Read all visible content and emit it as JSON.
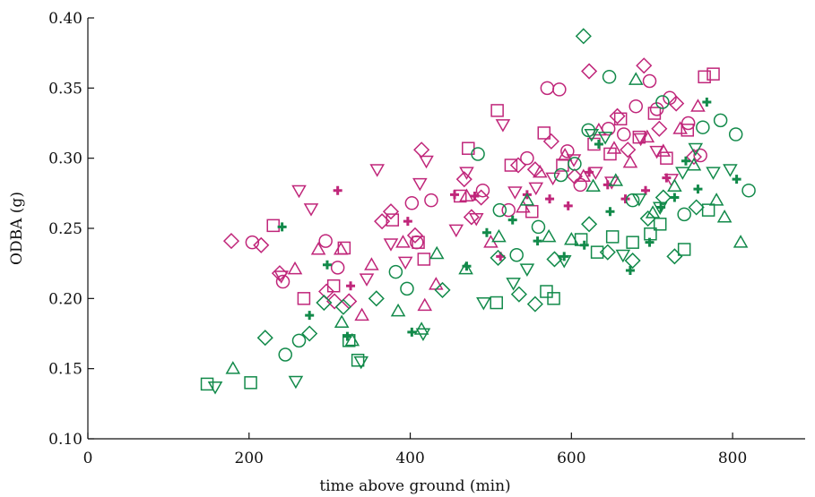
{
  "chart_data": {
    "type": "scatter",
    "title": "",
    "xlabel": "time above ground (min)",
    "ylabel": "ODBA (g)",
    "xlim": [
      0,
      890
    ],
    "ylim": [
      0.1,
      0.4
    ],
    "xticks": [
      "0",
      "200",
      "400",
      "600",
      "800"
    ],
    "xtick_values": [
      0,
      200,
      400,
      600,
      800
    ],
    "yticks": [
      "0.10",
      "0.15",
      "0.20",
      "0.25",
      "0.30",
      "0.35",
      "0.40"
    ],
    "ytick_values": [
      0.1,
      0.15,
      0.2,
      0.25,
      0.3,
      0.35,
      0.4
    ],
    "grid": false,
    "legend": "none",
    "colors": {
      "magenta": "#c0267a",
      "green": "#128a4a"
    },
    "series": [
      {
        "color": "#c0267a",
        "marker": "diamond",
        "points": [
          [
            178,
            0.241
          ],
          [
            215,
            0.238
          ],
          [
            238,
            0.218
          ],
          [
            296,
            0.205
          ],
          [
            306,
            0.198
          ],
          [
            324,
            0.198
          ],
          [
            365,
            0.255
          ],
          [
            376,
            0.262
          ],
          [
            406,
            0.245
          ],
          [
            414,
            0.306
          ],
          [
            467,
            0.285
          ],
          [
            476,
            0.258
          ],
          [
            488,
            0.272
          ],
          [
            534,
            0.295
          ],
          [
            555,
            0.292
          ],
          [
            575,
            0.312
          ],
          [
            604,
            0.287
          ],
          [
            622,
            0.362
          ],
          [
            657,
            0.33
          ],
          [
            670,
            0.306
          ],
          [
            690,
            0.366
          ],
          [
            709,
            0.321
          ],
          [
            730,
            0.339
          ],
          [
            752,
            0.301
          ]
        ]
      },
      {
        "color": "#c0267a",
        "marker": "circle",
        "points": [
          [
            204,
            0.24
          ],
          [
            242,
            0.212
          ],
          [
            295,
            0.241
          ],
          [
            310,
            0.222
          ],
          [
            402,
            0.268
          ],
          [
            408,
            0.24
          ],
          [
            426,
            0.27
          ],
          [
            490,
            0.277
          ],
          [
            522,
            0.263
          ],
          [
            545,
            0.3
          ],
          [
            570,
            0.35
          ],
          [
            585,
            0.349
          ],
          [
            595,
            0.305
          ],
          [
            611,
            0.281
          ],
          [
            646,
            0.321
          ],
          [
            665,
            0.317
          ],
          [
            680,
            0.337
          ],
          [
            697,
            0.355
          ],
          [
            706,
            0.335
          ],
          [
            722,
            0.343
          ],
          [
            745,
            0.325
          ],
          [
            760,
            0.302
          ]
        ]
      },
      {
        "color": "#c0267a",
        "marker": "square",
        "points": [
          [
            230,
            0.252
          ],
          [
            268,
            0.2
          ],
          [
            305,
            0.209
          ],
          [
            318,
            0.236
          ],
          [
            378,
            0.256
          ],
          [
            410,
            0.24
          ],
          [
            417,
            0.228
          ],
          [
            462,
            0.273
          ],
          [
            472,
            0.307
          ],
          [
            508,
            0.334
          ],
          [
            525,
            0.295
          ],
          [
            551,
            0.262
          ],
          [
            566,
            0.318
          ],
          [
            589,
            0.295
          ],
          [
            628,
            0.31
          ],
          [
            648,
            0.303
          ],
          [
            661,
            0.328
          ],
          [
            684,
            0.315
          ],
          [
            703,
            0.332
          ],
          [
            718,
            0.3
          ],
          [
            744,
            0.32
          ],
          [
            765,
            0.358
          ],
          [
            776,
            0.36
          ]
        ]
      },
      {
        "color": "#c0267a",
        "marker": "triangle-up",
        "points": [
          [
            257,
            0.221
          ],
          [
            286,
            0.235
          ],
          [
            314,
            0.235
          ],
          [
            340,
            0.188
          ],
          [
            352,
            0.224
          ],
          [
            391,
            0.24
          ],
          [
            418,
            0.195
          ],
          [
            432,
            0.21
          ],
          [
            470,
            0.273
          ],
          [
            500,
            0.24
          ],
          [
            540,
            0.265
          ],
          [
            561,
            0.29
          ],
          [
            592,
            0.302
          ],
          [
            615,
            0.287
          ],
          [
            634,
            0.32
          ],
          [
            653,
            0.307
          ],
          [
            673,
            0.297
          ],
          [
            694,
            0.315
          ],
          [
            714,
            0.305
          ],
          [
            735,
            0.321
          ],
          [
            757,
            0.337
          ]
        ]
      },
      {
        "color": "#c0267a",
        "marker": "triangle-down",
        "points": [
          [
            240,
            0.216
          ],
          [
            262,
            0.277
          ],
          [
            277,
            0.264
          ],
          [
            346,
            0.214
          ],
          [
            359,
            0.292
          ],
          [
            376,
            0.239
          ],
          [
            394,
            0.226
          ],
          [
            412,
            0.282
          ],
          [
            420,
            0.298
          ],
          [
            457,
            0.249
          ],
          [
            470,
            0.29
          ],
          [
            482,
            0.257
          ],
          [
            515,
            0.324
          ],
          [
            530,
            0.276
          ],
          [
            556,
            0.279
          ],
          [
            577,
            0.286
          ],
          [
            603,
            0.299
          ],
          [
            630,
            0.29
          ],
          [
            650,
            0.283
          ],
          [
            686,
            0.314
          ],
          [
            706,
            0.305
          ],
          [
            724,
            0.285
          ]
        ]
      },
      {
        "color": "#c0267a",
        "marker": "plus",
        "points": [
          [
            310,
            0.277
          ],
          [
            326,
            0.209
          ],
          [
            397,
            0.255
          ],
          [
            455,
            0.274
          ],
          [
            480,
            0.273
          ],
          [
            512,
            0.23
          ],
          [
            545,
            0.274
          ],
          [
            573,
            0.271
          ],
          [
            596,
            0.266
          ],
          [
            622,
            0.29
          ],
          [
            645,
            0.281
          ],
          [
            667,
            0.271
          ],
          [
            692,
            0.277
          ],
          [
            718,
            0.286
          ]
        ]
      },
      {
        "color": "#128a4a",
        "marker": "diamond",
        "points": [
          [
            220,
            0.172
          ],
          [
            275,
            0.175
          ],
          [
            293,
            0.197
          ],
          [
            317,
            0.194
          ],
          [
            358,
            0.2
          ],
          [
            440,
            0.206
          ],
          [
            509,
            0.229
          ],
          [
            535,
            0.203
          ],
          [
            555,
            0.196
          ],
          [
            579,
            0.228
          ],
          [
            615,
            0.387
          ],
          [
            622,
            0.253
          ],
          [
            645,
            0.233
          ],
          [
            676,
            0.227
          ],
          [
            695,
            0.257
          ],
          [
            714,
            0.272
          ],
          [
            728,
            0.23
          ],
          [
            755,
            0.265
          ]
        ]
      },
      {
        "color": "#128a4a",
        "marker": "circle",
        "points": [
          [
            245,
            0.16
          ],
          [
            262,
            0.17
          ],
          [
            382,
            0.219
          ],
          [
            396,
            0.207
          ],
          [
            484,
            0.303
          ],
          [
            511,
            0.263
          ],
          [
            532,
            0.231
          ],
          [
            559,
            0.251
          ],
          [
            587,
            0.288
          ],
          [
            604,
            0.296
          ],
          [
            621,
            0.32
          ],
          [
            647,
            0.358
          ],
          [
            676,
            0.27
          ],
          [
            713,
            0.34
          ],
          [
            740,
            0.26
          ],
          [
            763,
            0.322
          ],
          [
            785,
            0.327
          ],
          [
            804,
            0.317
          ],
          [
            820,
            0.277
          ]
        ]
      },
      {
        "color": "#128a4a",
        "marker": "square",
        "points": [
          [
            148,
            0.139
          ],
          [
            202,
            0.14
          ],
          [
            324,
            0.17
          ],
          [
            335,
            0.156
          ],
          [
            507,
            0.197
          ],
          [
            569,
            0.205
          ],
          [
            578,
            0.2
          ],
          [
            612,
            0.242
          ],
          [
            632,
            0.233
          ],
          [
            651,
            0.244
          ],
          [
            676,
            0.24
          ],
          [
            698,
            0.246
          ],
          [
            710,
            0.253
          ],
          [
            740,
            0.235
          ],
          [
            770,
            0.263
          ]
        ]
      },
      {
        "color": "#128a4a",
        "marker": "triangle-up",
        "points": [
          [
            180,
            0.15
          ],
          [
            315,
            0.183
          ],
          [
            328,
            0.17
          ],
          [
            385,
            0.191
          ],
          [
            414,
            0.178
          ],
          [
            433,
            0.232
          ],
          [
            469,
            0.221
          ],
          [
            510,
            0.244
          ],
          [
            545,
            0.27
          ],
          [
            572,
            0.244
          ],
          [
            600,
            0.242
          ],
          [
            627,
            0.28
          ],
          [
            655,
            0.284
          ],
          [
            680,
            0.356
          ],
          [
            701,
            0.261
          ],
          [
            728,
            0.28
          ],
          [
            752,
            0.295
          ],
          [
            780,
            0.27
          ],
          [
            790,
            0.258
          ],
          [
            810,
            0.24
          ]
        ]
      },
      {
        "color": "#128a4a",
        "marker": "triangle-down",
        "points": [
          [
            158,
            0.137
          ],
          [
            258,
            0.141
          ],
          [
            339,
            0.155
          ],
          [
            416,
            0.175
          ],
          [
            491,
            0.197
          ],
          [
            528,
            0.211
          ],
          [
            545,
            0.221
          ],
          [
            591,
            0.227
          ],
          [
            625,
            0.317
          ],
          [
            642,
            0.315
          ],
          [
            664,
            0.231
          ],
          [
            684,
            0.271
          ],
          [
            710,
            0.265
          ],
          [
            738,
            0.29
          ],
          [
            754,
            0.307
          ],
          [
            776,
            0.29
          ],
          [
            797,
            0.292
          ]
        ]
      },
      {
        "color": "#128a4a",
        "marker": "plus",
        "points": [
          [
            241,
            0.251
          ],
          [
            275,
            0.188
          ],
          [
            297,
            0.224
          ],
          [
            322,
            0.173
          ],
          [
            402,
            0.176
          ],
          [
            470,
            0.223
          ],
          [
            495,
            0.247
          ],
          [
            527,
            0.256
          ],
          [
            558,
            0.241
          ],
          [
            591,
            0.23
          ],
          [
            616,
            0.238
          ],
          [
            634,
            0.31
          ],
          [
            648,
            0.262
          ],
          [
            673,
            0.22
          ],
          [
            697,
            0.24
          ],
          [
            711,
            0.265
          ],
          [
            728,
            0.272
          ],
          [
            742,
            0.298
          ],
          [
            757,
            0.278
          ],
          [
            768,
            0.34
          ],
          [
            805,
            0.285
          ]
        ]
      }
    ]
  }
}
